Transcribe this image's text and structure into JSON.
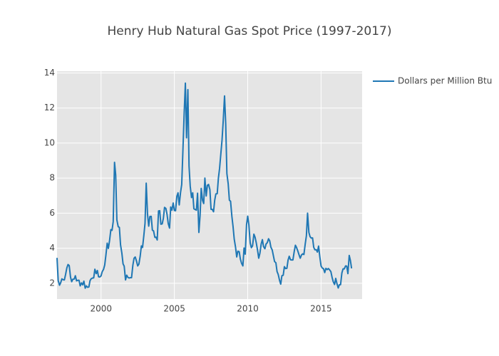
{
  "chart_data": {
    "type": "line",
    "title": "Henry Hub Natural Gas Spot Price (1997-2017)",
    "xlim": [
      1997.0,
      2017.8
    ],
    "xticks": [
      2000,
      2005,
      2010,
      2015
    ],
    "ylim": [
      1.1,
      14.1
    ],
    "yticks": [
      2,
      4,
      6,
      8,
      10,
      12,
      14
    ],
    "grid": true,
    "legend": "right",
    "x": [
      1997.0,
      1997.08,
      1997.17,
      1997.25,
      1997.33,
      1997.42,
      1997.5,
      1997.58,
      1997.67,
      1997.75,
      1997.83,
      1997.92,
      1998.0,
      1998.08,
      1998.17,
      1998.25,
      1998.33,
      1998.42,
      1998.5,
      1998.58,
      1998.67,
      1998.75,
      1998.83,
      1998.92,
      1999.0,
      1999.08,
      1999.17,
      1999.25,
      1999.33,
      1999.42,
      1999.5,
      1999.58,
      1999.67,
      1999.75,
      1999.83,
      1999.92,
      2000.0,
      2000.08,
      2000.17,
      2000.25,
      2000.33,
      2000.42,
      2000.5,
      2000.58,
      2000.67,
      2000.75,
      2000.83,
      2000.92,
      2001.0,
      2001.08,
      2001.17,
      2001.25,
      2001.33,
      2001.42,
      2001.5,
      2001.58,
      2001.67,
      2001.75,
      2001.83,
      2001.92,
      2002.0,
      2002.08,
      2002.17,
      2002.25,
      2002.33,
      2002.42,
      2002.5,
      2002.58,
      2002.67,
      2002.75,
      2002.83,
      2002.92,
      2003.0,
      2003.08,
      2003.17,
      2003.25,
      2003.33,
      2003.42,
      2003.5,
      2003.58,
      2003.67,
      2003.75,
      2003.83,
      2003.92,
      2004.0,
      2004.08,
      2004.17,
      2004.25,
      2004.33,
      2004.42,
      2004.5,
      2004.58,
      2004.67,
      2004.75,
      2004.83,
      2004.92,
      2005.0,
      2005.08,
      2005.17,
      2005.25,
      2005.33,
      2005.42,
      2005.5,
      2005.58,
      2005.67,
      2005.75,
      2005.83,
      2005.92,
      2006.0,
      2006.08,
      2006.17,
      2006.25,
      2006.33,
      2006.42,
      2006.5,
      2006.58,
      2006.67,
      2006.75,
      2006.83,
      2006.92,
      2007.0,
      2007.08,
      2007.17,
      2007.25,
      2007.33,
      2007.42,
      2007.5,
      2007.58,
      2007.67,
      2007.75,
      2007.83,
      2007.92,
      2008.0,
      2008.08,
      2008.17,
      2008.25,
      2008.33,
      2008.42,
      2008.5,
      2008.58,
      2008.67,
      2008.75,
      2008.83,
      2008.92,
      2009.0,
      2009.08,
      2009.17,
      2009.25,
      2009.33,
      2009.42,
      2009.5,
      2009.58,
      2009.67,
      2009.75,
      2009.83,
      2009.92,
      2010.0,
      2010.08,
      2010.17,
      2010.25,
      2010.33,
      2010.42,
      2010.5,
      2010.58,
      2010.67,
      2010.75,
      2010.83,
      2010.92,
      2011.0,
      2011.08,
      2011.17,
      2011.25,
      2011.33,
      2011.42,
      2011.5,
      2011.58,
      2011.67,
      2011.75,
      2011.83,
      2011.92,
      2012.0,
      2012.08,
      2012.17,
      2012.25,
      2012.33,
      2012.42,
      2012.5,
      2012.58,
      2012.67,
      2012.75,
      2012.83,
      2012.92,
      2013.0,
      2013.08,
      2013.17,
      2013.25,
      2013.33,
      2013.42,
      2013.5,
      2013.58,
      2013.67,
      2013.75,
      2013.83,
      2013.92,
      2014.0,
      2014.08,
      2014.17,
      2014.25,
      2014.33,
      2014.42,
      2014.5,
      2014.58,
      2014.67,
      2014.75,
      2014.83,
      2014.92,
      2015.0,
      2015.08,
      2015.17,
      2015.25,
      2015.33,
      2015.42,
      2015.5,
      2015.58,
      2015.67,
      2015.75,
      2015.83,
      2015.92,
      2016.0,
      2016.08,
      2016.17,
      2016.25,
      2016.33,
      2016.42,
      2016.5,
      2016.58,
      2016.67,
      2016.75,
      2016.83,
      2016.92,
      2017.0,
      2017.08
    ],
    "series": [
      {
        "name": "Dollars per Million Btu",
        "color": "#1f77b4",
        "values": [
          3.45,
          2.15,
          1.89,
          2.03,
          2.25,
          2.2,
          2.19,
          2.49,
          2.88,
          3.07,
          3.01,
          2.35,
          2.09,
          2.23,
          2.24,
          2.43,
          2.14,
          2.17,
          2.17,
          1.85,
          2.02,
          1.91,
          2.12,
          1.72,
          1.85,
          1.77,
          1.79,
          2.15,
          2.26,
          2.3,
          2.31,
          2.8,
          2.55,
          2.73,
          2.37,
          2.36,
          2.42,
          2.66,
          2.79,
          3.04,
          3.59,
          4.29,
          3.99,
          4.43,
          5.06,
          5.02,
          5.52,
          8.9,
          8.17,
          5.61,
          5.23,
          5.19,
          4.19,
          3.72,
          3.11,
          2.97,
          2.19,
          2.46,
          2.34,
          2.3,
          2.32,
          2.32,
          3.03,
          3.43,
          3.5,
          3.26,
          2.99,
          3.09,
          3.55,
          4.13,
          4.04,
          4.74,
          5.43,
          7.71,
          5.93,
          5.26,
          5.81,
          5.82,
          5.03,
          4.99,
          4.62,
          4.63,
          4.47,
          6.13,
          6.14,
          5.37,
          5.39,
          5.71,
          6.33,
          6.27,
          5.93,
          5.41,
          5.15,
          6.35,
          6.17,
          6.58,
          6.15,
          6.14,
          6.96,
          7.16,
          6.47,
          7.18,
          7.63,
          9.53,
          11.75,
          13.42,
          10.3,
          13.05,
          8.69,
          7.54,
          6.89,
          7.16,
          6.25,
          6.21,
          6.17,
          7.14,
          4.9,
          5.85,
          7.41,
          6.73,
          6.55,
          8.0,
          6.98,
          7.59,
          7.64,
          7.35,
          6.22,
          6.22,
          6.08,
          6.74,
          7.1,
          7.11,
          7.99,
          8.54,
          9.41,
          10.18,
          11.27,
          12.69,
          11.09,
          8.26,
          7.67,
          6.74,
          6.68,
          5.82,
          5.24,
          4.52,
          4.06,
          3.5,
          3.83,
          3.8,
          3.38,
          3.14,
          2.99,
          4.01,
          3.66,
          5.35,
          5.83,
          5.32,
          4.29,
          4.03,
          4.14,
          4.8,
          4.63,
          4.32,
          3.89,
          3.43,
          3.71,
          4.25,
          4.49,
          4.09,
          3.97,
          4.24,
          4.31,
          4.54,
          4.42,
          4.06,
          3.9,
          3.57,
          3.24,
          3.17,
          2.67,
          2.5,
          2.17,
          1.95,
          2.43,
          2.46,
          2.95,
          2.84,
          2.85,
          3.32,
          3.54,
          3.34,
          3.33,
          3.33,
          3.81,
          4.17,
          4.04,
          3.83,
          3.62,
          3.43,
          3.62,
          3.68,
          3.64,
          4.24,
          4.71,
          6.0,
          4.9,
          4.66,
          4.58,
          4.59,
          4.05,
          3.91,
          3.92,
          3.78,
          4.12,
          3.48,
          2.99,
          2.87,
          2.83,
          2.61,
          2.85,
          2.78,
          2.84,
          2.77,
          2.66,
          2.34,
          2.09,
          1.93,
          2.28,
          1.99,
          1.73,
          1.92,
          1.92,
          2.59,
          2.82,
          2.82,
          2.99,
          2.98,
          2.55,
          3.59,
          3.3,
          2.85
        ]
      }
    ]
  }
}
